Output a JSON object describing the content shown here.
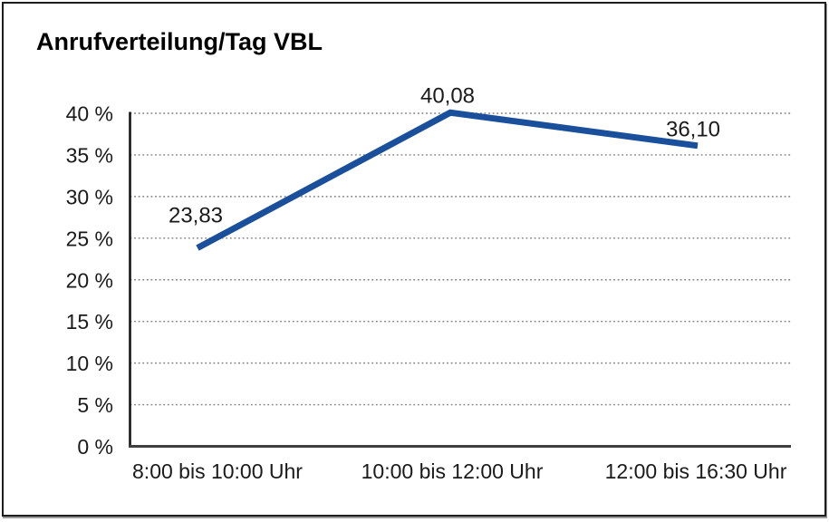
{
  "page": {
    "title": "Anrufverteilung/Tag VBL"
  },
  "chart_data": {
    "type": "line",
    "title": "Anrufverteilung/Tag VBL",
    "categories": [
      "8:00 bis 10:00 Uhr",
      "10:00 bis 12:00 Uhr",
      "12:00 bis 16:30 Uhr"
    ],
    "series": [
      {
        "name": "Anrufverteilung",
        "values": [
          23.83,
          40.08,
          36.1
        ],
        "value_labels": [
          "23,83",
          "40,08",
          "36,10"
        ]
      }
    ],
    "xlabel": "",
    "ylabel": "",
    "ylim": [
      0,
      40
    ],
    "y_tick_step": 5,
    "y_ticks": [
      0,
      5,
      10,
      15,
      20,
      25,
      30,
      35,
      40
    ],
    "y_tick_labels": [
      "0 %",
      "5 %",
      "10 %",
      "15 %",
      "20 %",
      "25 %",
      "30 %",
      "35 %",
      "40 %"
    ],
    "grid": "horizontal dotted gridlines at each 5% step",
    "legend_position": "none",
    "colors": {
      "series_line": "#1A4F9B",
      "gridline": "#7f7f7f",
      "y_axis": "#141414",
      "x_axis": "#3f3f3f",
      "text": "#1a1a1a",
      "frame_border": "#1d1d1d",
      "background": "#ffffff"
    }
  }
}
